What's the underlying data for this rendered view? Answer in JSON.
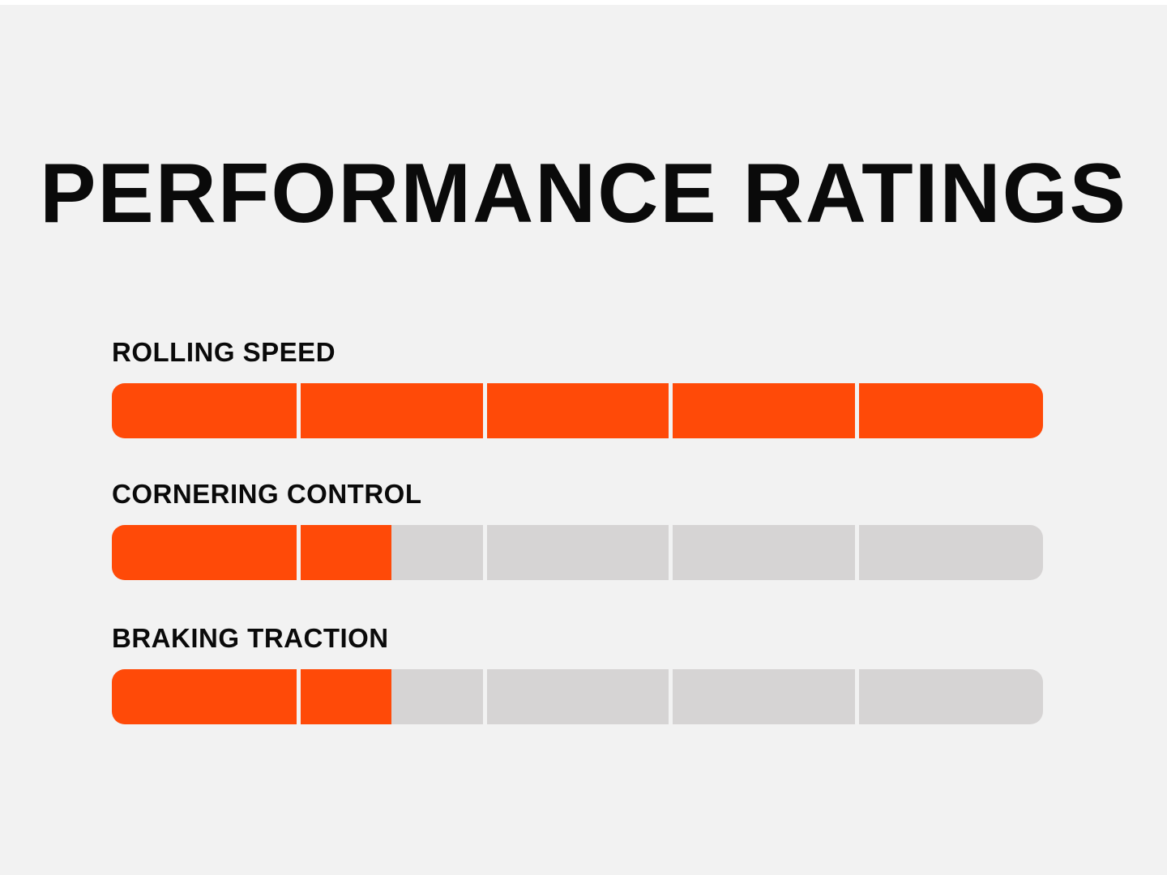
{
  "page": {
    "title": "PERFORMANCE RATINGS"
  },
  "colors": {
    "background": "#f2f2f2",
    "fill": "#ff4a08",
    "track": "#d6d4d4",
    "text": "#0a0a0a"
  },
  "ratings": [
    {
      "label": "ROLLING SPEED",
      "value": 5,
      "max": 5
    },
    {
      "label": "CORNERING CONTROL",
      "value": 1.5,
      "max": 5
    },
    {
      "label": "BRAKING TRACTION",
      "value": 1.5,
      "max": 5
    }
  ]
}
